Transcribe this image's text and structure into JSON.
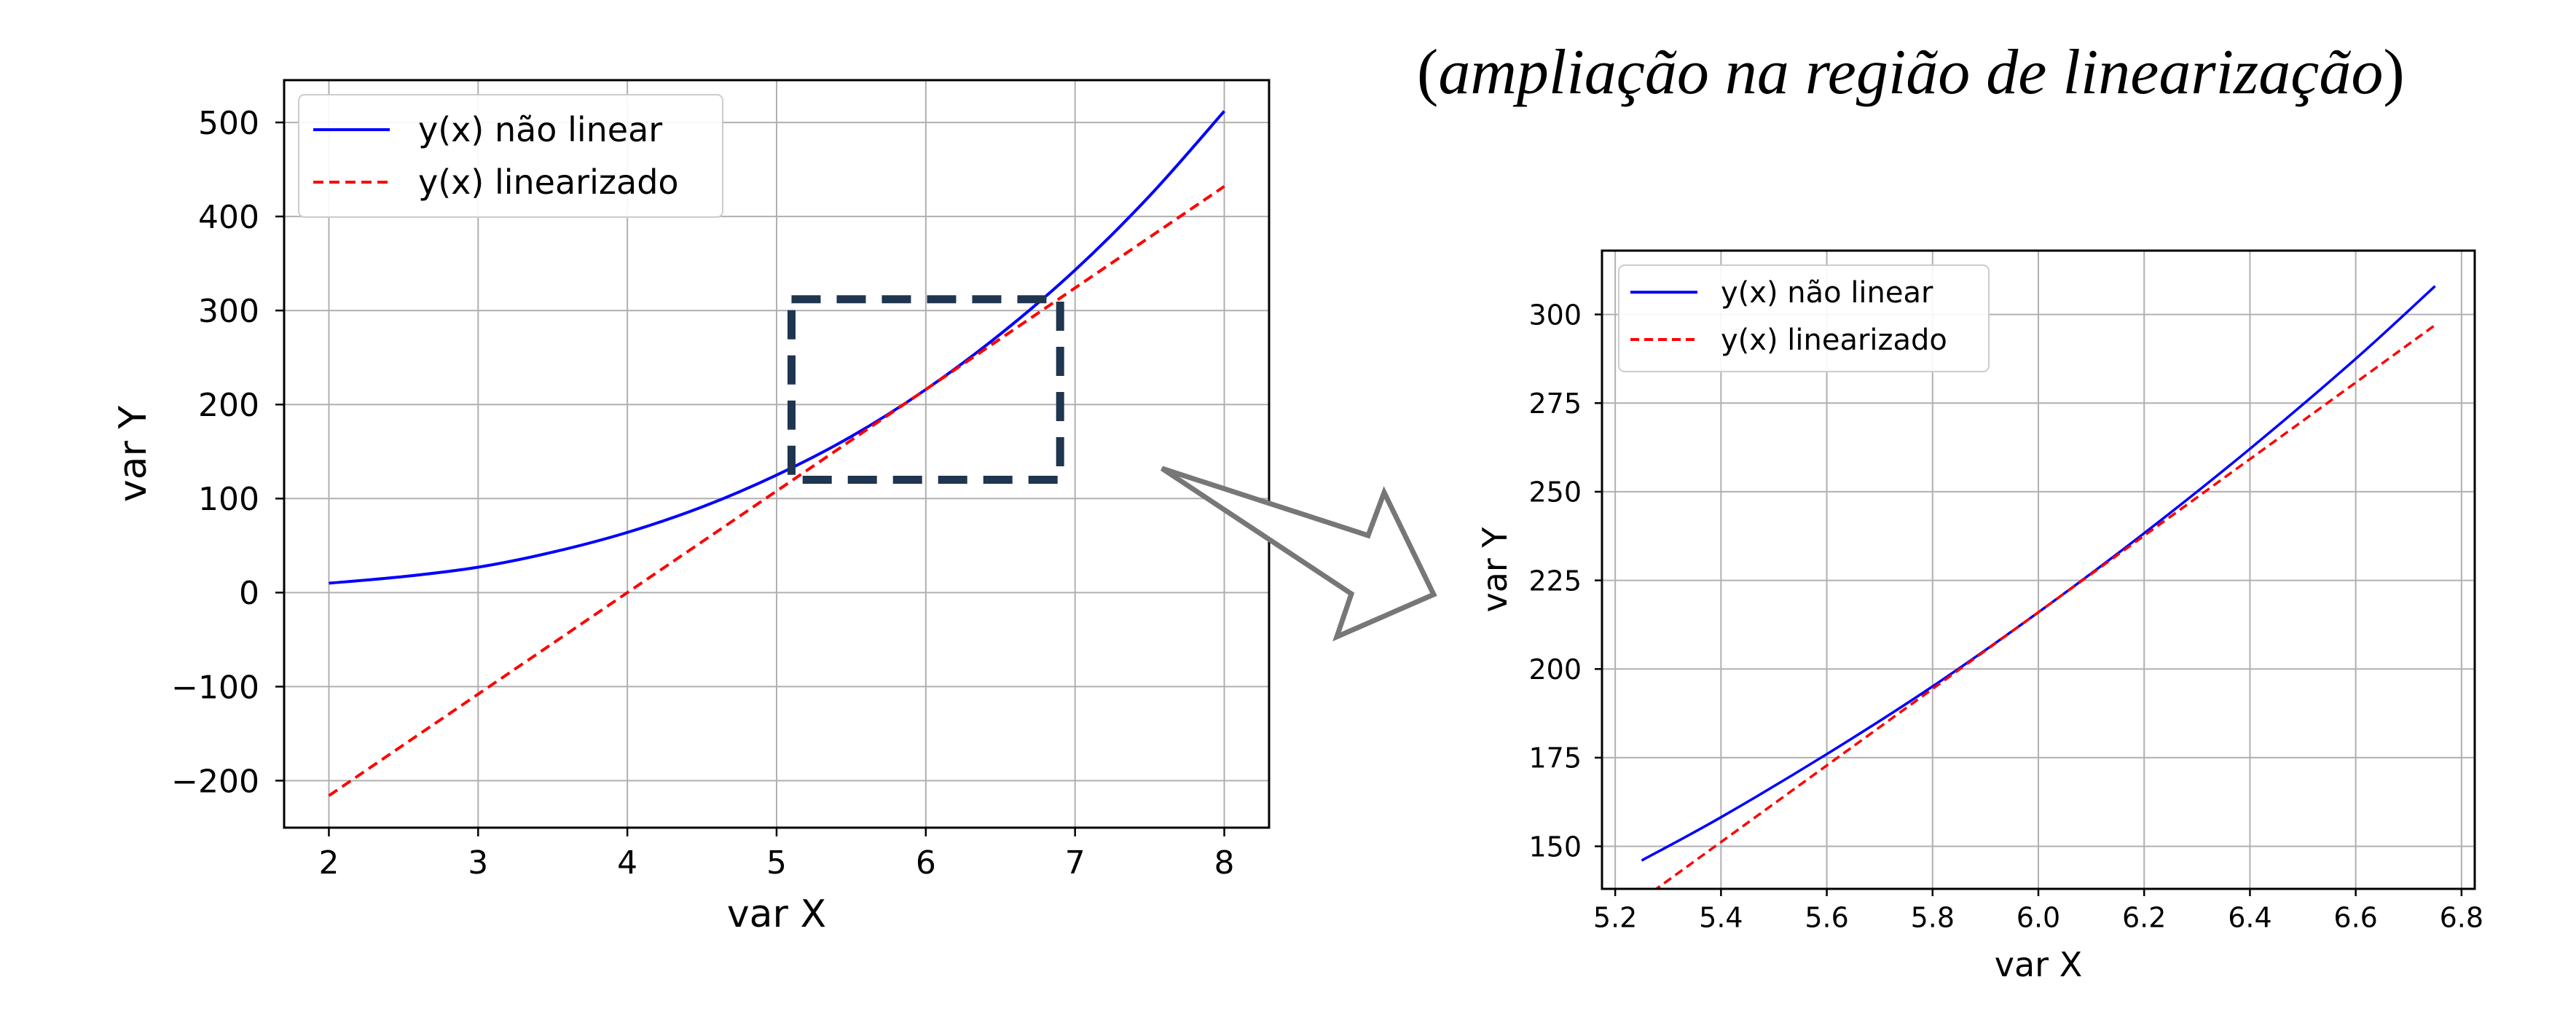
{
  "zoom_title": {
    "open": "(",
    "text": "ampliação na região de linearização",
    "close": ")"
  },
  "chart_data": [
    {
      "id": "main",
      "type": "line",
      "title": "",
      "xlabel": "var X",
      "ylabel": "var Y",
      "xlim": [
        1.7,
        8.3
      ],
      "ylim": [
        -250,
        545
      ],
      "xticks": [
        2,
        3,
        4,
        5,
        6,
        7,
        8
      ],
      "yticks": [
        -200,
        -100,
        0,
        100,
        200,
        300,
        400,
        500
      ],
      "ytick_labels": [
        "−200",
        "−100",
        "0",
        "100",
        "200",
        "300",
        "400",
        "500"
      ],
      "grid": true,
      "legend_position": "upper-left",
      "series": [
        {
          "name": "y(x) não linear",
          "style": "solid",
          "color": "#0000ff",
          "x": [
            2.0,
            2.5,
            3.0,
            3.5,
            4.0,
            4.5,
            5.0,
            5.5,
            6.0,
            6.5,
            7.0,
            7.5,
            8.0
          ],
          "y": [
            10.0,
            17.0,
            27.0,
            43.0,
            64.0,
            91.0,
            125.0,
            166.0,
            216.0,
            275.0,
            343.0,
            422.0,
            512.0
          ]
        },
        {
          "name": "y(x) linearizado",
          "style": "dashed",
          "color": "#ff0000",
          "x": [
            2.0,
            8.0
          ],
          "y": [
            -216.0,
            432.0
          ]
        }
      ],
      "annotation": {
        "type": "dashed-rectangle",
        "color": "#1f3550",
        "x_range": [
          5.1,
          6.9
        ],
        "y_range": [
          120,
          312
        ]
      }
    },
    {
      "id": "zoom",
      "type": "line",
      "title": "",
      "xlabel": "var X",
      "ylabel": "var Y",
      "xlim": [
        5.175,
        6.825
      ],
      "ylim": [
        138,
        318
      ],
      "xticks": [
        5.2,
        5.4,
        5.6,
        5.8,
        6.0,
        6.2,
        6.4,
        6.6,
        6.8
      ],
      "yticks": [
        150,
        175,
        200,
        225,
        250,
        275,
        300
      ],
      "grid": true,
      "legend_position": "upper-left",
      "series": [
        {
          "name": "y(x) não linear",
          "style": "solid",
          "color": "#0000ff",
          "x": [
            5.25,
            5.4,
            5.6,
            5.8,
            6.0,
            6.2,
            6.4,
            6.6,
            6.75
          ],
          "y": [
            146.0,
            158.2,
            176.0,
            195.1,
            216.0,
            238.3,
            262.1,
            287.5,
            308.0
          ]
        },
        {
          "name": "y(x) linearizado",
          "style": "dashed",
          "color": "#ff0000",
          "x": [
            5.25,
            6.75
          ],
          "y": [
            135.0,
            297.0
          ]
        }
      ]
    }
  ]
}
